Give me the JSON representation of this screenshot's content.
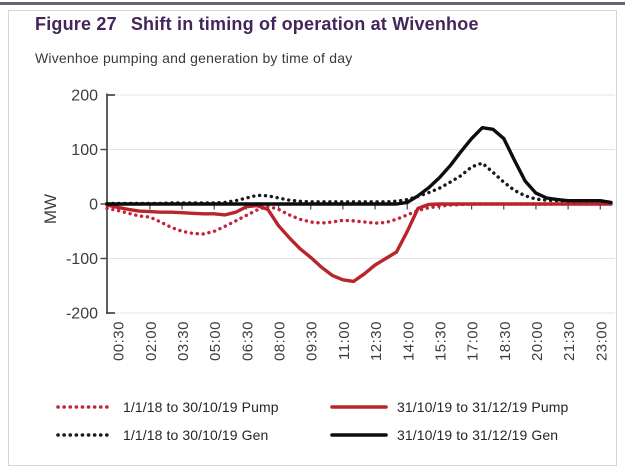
{
  "figure": {
    "label": "Figure 27",
    "title": "Shift in timing of operation at Wivenhoe",
    "subtitle": "Wivenhoe pumping and generation by time of day"
  },
  "colors": {
    "title_purple": "#43275a",
    "border_gray": "#d6d6d6",
    "axis_gray": "#4f4f4f",
    "gridline_gray": "#e4e4e4",
    "red_dotted": "#c3243b",
    "red_solid": "#b8252a",
    "black_dotted": "#1a1a1a",
    "black_solid": "#0d0d0d"
  },
  "chart_data": {
    "type": "line",
    "title": "Shift in timing of operation at Wivenhoe",
    "subtitle": "Wivenhoe pumping and generation by time of day",
    "ylabel": "MW",
    "ylim": [
      -200,
      200
    ],
    "y_ticks": [
      200,
      100,
      0,
      -100,
      -200
    ],
    "x_start": "00:00",
    "x_interval_minutes": 30,
    "tick_labels": [
      "00:30",
      "02:00",
      "03:30",
      "05:00",
      "06:30",
      "08:00",
      "09:30",
      "11:00",
      "12:30",
      "14:00",
      "15:30",
      "17:00",
      "18:30",
      "20:00",
      "21:30",
      "23:00"
    ],
    "grid": true,
    "legend_position": "bottom",
    "series": [
      {
        "key": "pump-old",
        "name": "1/1/18 to 30/10/19 Pump",
        "style": "dotted",
        "color": "#c3243b",
        "values": [
          -8,
          -12,
          -17,
          -22,
          -24,
          -33,
          -43,
          -50,
          -54,
          -55,
          -50,
          -41,
          -31,
          -21,
          -11,
          -4,
          -10,
          -20,
          -28,
          -33,
          -35,
          -33,
          -30,
          -31,
          -33,
          -35,
          -34,
          -28,
          -20,
          -12,
          -7,
          -4,
          -2,
          -1,
          0,
          0,
          0,
          0,
          0,
          0,
          0,
          0,
          0,
          0,
          0,
          0,
          0,
          0
        ]
      },
      {
        "key": "pump-new",
        "name": "31/10/19 to 31/12/19 Pump",
        "style": "solid",
        "color": "#b8252a",
        "values": [
          -2,
          -6,
          -10,
          -13,
          -14,
          -15,
          -15,
          -16,
          -17,
          -18,
          -18,
          -20,
          -15,
          -5,
          -3,
          -10,
          -40,
          -62,
          -82,
          -98,
          -116,
          -131,
          -139,
          -142,
          -128,
          -112,
          -100,
          -88,
          -50,
          -8,
          -1,
          0,
          0,
          0,
          0,
          0,
          0,
          0,
          0,
          0,
          0,
          0,
          0,
          0,
          0,
          0,
          0,
          0
        ]
      },
      {
        "key": "gen-old",
        "name": "1/1/18 to 30/10/19 Gen",
        "style": "dotted",
        "color": "#1a1a1a",
        "values": [
          1,
          1,
          1,
          1,
          1,
          1,
          2,
          2,
          2,
          2,
          2,
          3,
          6,
          11,
          16,
          15,
          11,
          7,
          5,
          4,
          4,
          4,
          4,
          4,
          4,
          4,
          4,
          5,
          8,
          14,
          21,
          29,
          40,
          52,
          68,
          75,
          58,
          40,
          25,
          15,
          9,
          7,
          6,
          5,
          5,
          5,
          4,
          3
        ]
      },
      {
        "key": "gen-new",
        "name": "31/10/19 to 31/12/19 Gen",
        "style": "solid",
        "color": "#0d0d0d",
        "values": [
          0,
          0,
          0,
          0,
          0,
          0,
          0,
          0,
          0,
          0,
          0,
          0,
          0,
          0,
          0,
          0,
          0,
          0,
          0,
          0,
          0,
          0,
          0,
          0,
          0,
          0,
          0,
          0,
          3,
          15,
          30,
          48,
          70,
          96,
          120,
          140,
          137,
          120,
          80,
          42,
          20,
          11,
          8,
          6,
          6,
          6,
          6,
          3
        ]
      }
    ]
  }
}
